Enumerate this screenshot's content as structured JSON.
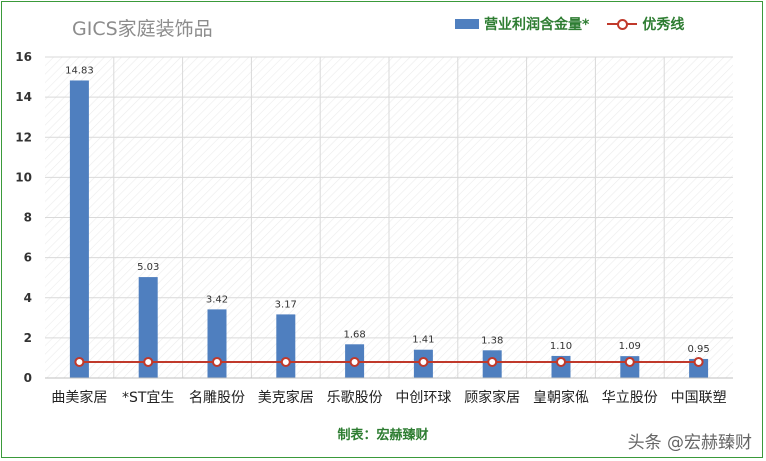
{
  "title": "GICS家庭装饰品",
  "legend": {
    "bar_label": "营业利润含金量*",
    "line_label": "优秀线"
  },
  "footer": "制表：宏赫臻财",
  "watermark": "头条 @宏赫臻财",
  "colors": {
    "bar": "#4f7fbf",
    "line": "#c0392b",
    "grid": "#d9d9d9",
    "text_green": "#2e7d32"
  },
  "chart_data": {
    "type": "bar",
    "categories": [
      "曲美家居",
      "*ST宜生",
      "名雕股份",
      "美克家居",
      "乐歌股份",
      "中创环球",
      "顾家家居",
      "皇朝家俬",
      "华立股份",
      "中国联塑"
    ],
    "series": [
      {
        "name": "营业利润含金量*",
        "type": "bar",
        "values": [
          14.83,
          5.03,
          3.42,
          3.17,
          1.68,
          1.41,
          1.38,
          1.1,
          1.09,
          0.95
        ],
        "labels": [
          "14.83",
          "5.03",
          "3.42",
          "3.17",
          "1.68",
          "1.41",
          "1.38",
          "1.10",
          "1.09",
          "0.95"
        ]
      },
      {
        "name": "优秀线",
        "type": "line",
        "value": 0.8
      }
    ],
    "y_ticks": [
      0,
      2,
      4,
      6,
      8,
      10,
      12,
      14,
      16
    ],
    "ylim": [
      0,
      16
    ],
    "grid": true,
    "legend_position": "top-right"
  }
}
